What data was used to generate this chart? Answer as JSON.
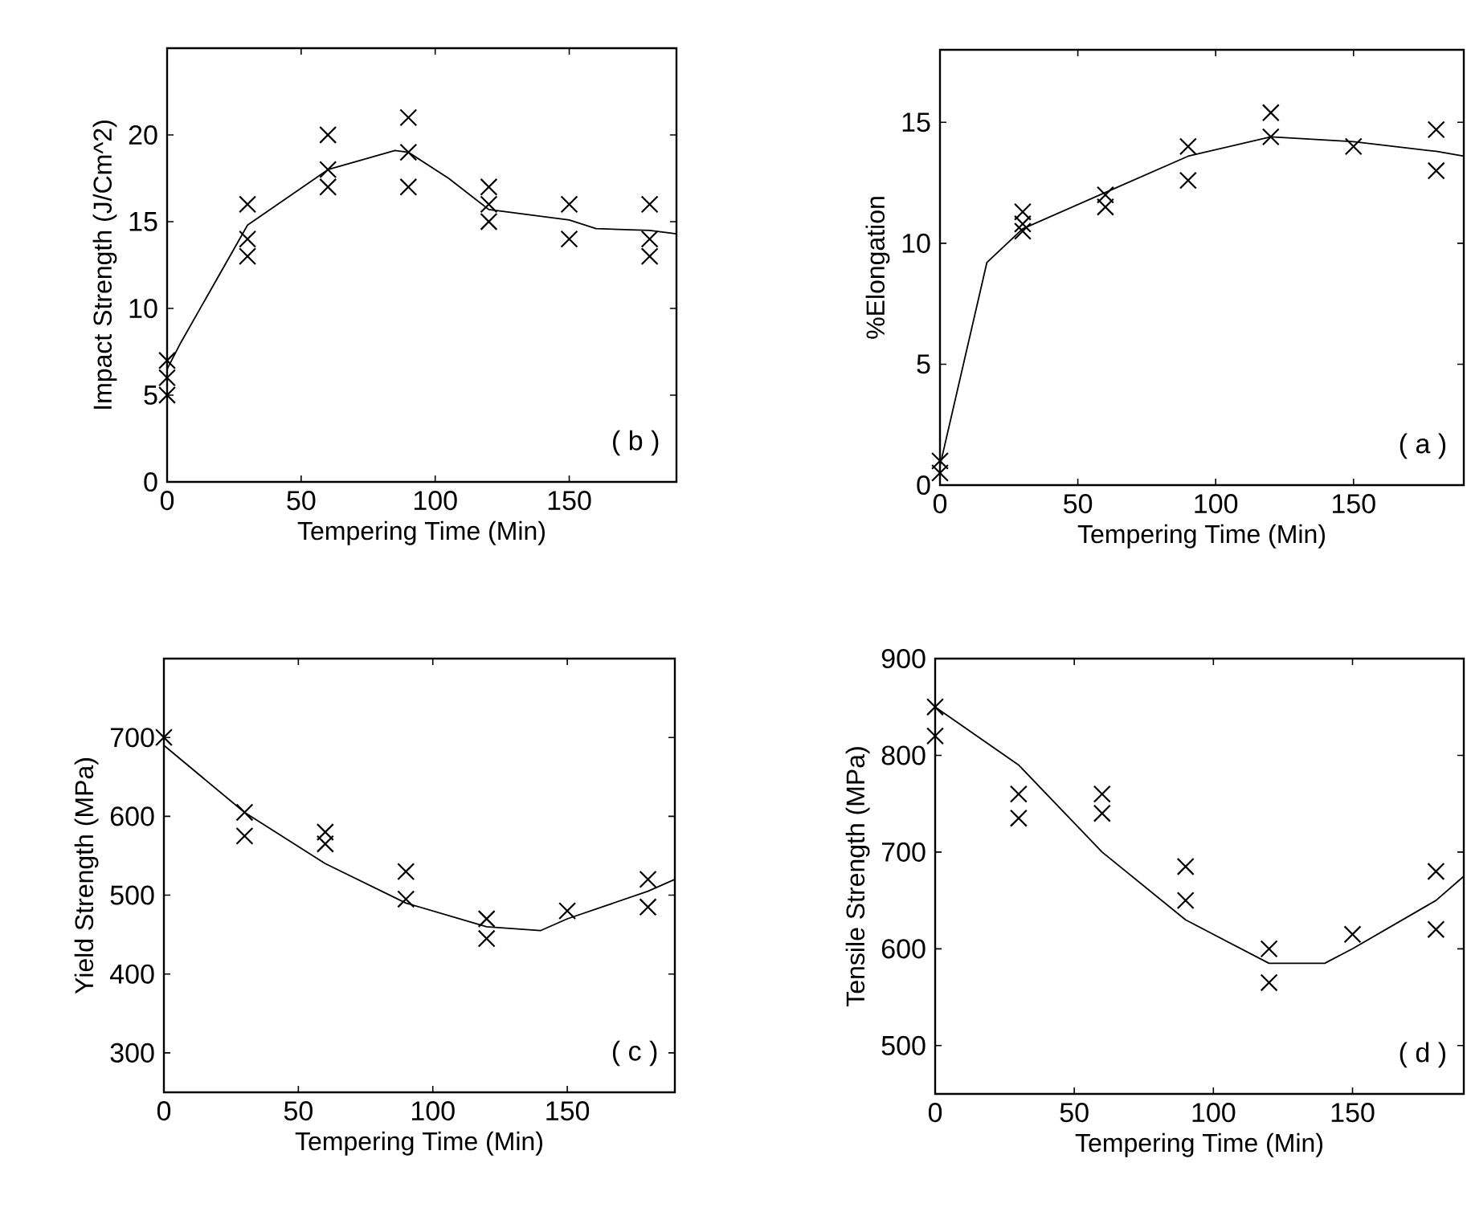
{
  "chart_data": [
    {
      "type": "line",
      "xlabel": "Tempering Time (Min)",
      "ylabel": "Impact Strength (J/Cm^2)",
      "annotations": [
        "( b )"
      ],
      "xlim": [
        0,
        190
      ],
      "ylim": [
        0,
        25
      ],
      "xticks": [
        0,
        50,
        100,
        150
      ],
      "yticks": [
        0,
        5,
        10,
        15,
        20
      ],
      "series": [
        {
          "type": "scatter",
          "marker": "cross",
          "color": "#000000",
          "x": [
            0,
            0,
            0,
            30,
            30,
            30,
            60,
            60,
            60,
            90,
            90,
            90,
            120,
            120,
            120,
            150,
            150,
            180,
            180,
            180
          ],
          "values": [
            5,
            6,
            7,
            16,
            14,
            13,
            20,
            18,
            17,
            21,
            19,
            17,
            17,
            16,
            15,
            16,
            14,
            16,
            14,
            13
          ]
        },
        {
          "marker": "none",
          "line_style": "solid",
          "color": "#000000",
          "x": [
            0,
            5,
            30,
            60,
            85,
            90,
            105,
            120,
            150,
            160,
            180,
            190
          ],
          "values": [
            6.5,
            8,
            14.8,
            18,
            19.1,
            19,
            17.5,
            15.7,
            15.1,
            14.6,
            14.5,
            14.3
          ]
        }
      ]
    },
    {
      "type": "line",
      "xlabel": "Tempering Time (Min)",
      "ylabel": "%Elongation",
      "annotations": [
        "( a )"
      ],
      "xlim": [
        0,
        190
      ],
      "ylim": [
        0,
        18
      ],
      "xticks": [
        0,
        50,
        100,
        150
      ],
      "yticks": [
        0,
        5,
        10,
        15
      ],
      "series": [
        {
          "type": "scatter",
          "marker": "cross",
          "color": "#000000",
          "x": [
            0,
            0,
            30,
            30,
            30,
            60,
            60,
            90,
            90,
            120,
            120,
            150,
            180,
            180
          ],
          "values": [
            1,
            0.5,
            11.3,
            10.8,
            10.5,
            12,
            11.5,
            14,
            12.6,
            15.4,
            14.4,
            14,
            14.7,
            13
          ]
        },
        {
          "marker": "none",
          "line_style": "solid",
          "color": "#000000",
          "x": [
            0,
            17,
            30,
            60,
            90,
            120,
            150,
            180,
            190
          ],
          "values": [
            0.8,
            9.2,
            10.6,
            12.1,
            13.6,
            14.4,
            14.2,
            13.8,
            13.6
          ]
        }
      ]
    },
    {
      "type": "line",
      "xlabel": "Tempering Time (Min)",
      "ylabel": "Yield Strength (MPa)",
      "annotations": [
        "( c )"
      ],
      "xlim": [
        0,
        190
      ],
      "ylim": [
        250,
        800
      ],
      "xticks": [
        0,
        50,
        100,
        150
      ],
      "yticks": [
        300,
        400,
        500,
        600,
        700
      ],
      "series": [
        {
          "type": "scatter",
          "marker": "cross",
          "color": "#000000",
          "x": [
            0,
            30,
            30,
            60,
            60,
            90,
            90,
            120,
            120,
            150,
            180,
            180
          ],
          "values": [
            700,
            605,
            575,
            580,
            565,
            530,
            495,
            470,
            445,
            480,
            520,
            485
          ]
        },
        {
          "marker": "none",
          "line_style": "solid",
          "color": "#000000",
          "x": [
            0,
            30,
            60,
            90,
            120,
            140,
            150,
            180,
            190
          ],
          "values": [
            690,
            605,
            540,
            490,
            460,
            455,
            470,
            505,
            520
          ]
        }
      ]
    },
    {
      "type": "line",
      "xlabel": "Tempering Time (Min)",
      "ylabel": "Tensile Strength (MPa)",
      "annotations": [
        "( d )"
      ],
      "xlim": [
        0,
        190
      ],
      "ylim": [
        450,
        900
      ],
      "xticks": [
        0,
        50,
        100,
        150
      ],
      "yticks": [
        500,
        600,
        700,
        800,
        900
      ],
      "series": [
        {
          "type": "scatter",
          "marker": "cross",
          "color": "#000000",
          "x": [
            0,
            0,
            30,
            30,
            60,
            60,
            90,
            90,
            120,
            120,
            150,
            180,
            180
          ],
          "values": [
            850,
            820,
            760,
            735,
            760,
            740,
            685,
            650,
            600,
            565,
            615,
            680,
            620
          ]
        },
        {
          "marker": "none",
          "line_style": "solid",
          "color": "#000000",
          "x": [
            0,
            30,
            60,
            90,
            120,
            140,
            150,
            180,
            190
          ],
          "values": [
            850,
            790,
            700,
            630,
            585,
            585,
            600,
            650,
            675
          ]
        }
      ]
    }
  ]
}
